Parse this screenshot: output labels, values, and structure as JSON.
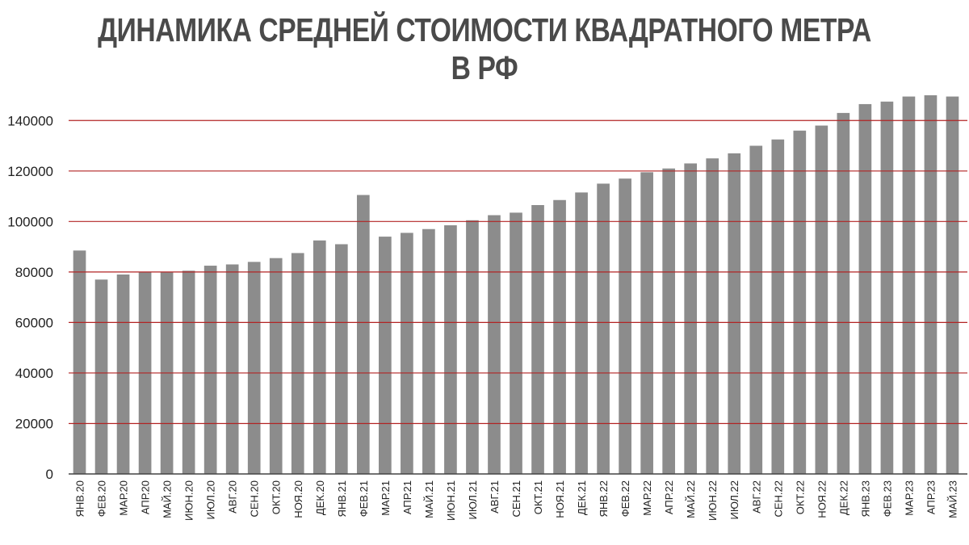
{
  "chart_data": {
    "type": "bar",
    "title": "ДИНАМИКА СРЕДНЕЙ СТОИМОСТИ КВАДРАТНОГО МЕТРА В РФ",
    "xlabel": "",
    "ylabel": "",
    "ylim": [
      0,
      150000
    ],
    "yticks": [
      0,
      20000,
      40000,
      60000,
      80000,
      100000,
      120000,
      140000
    ],
    "ytick_labels": [
      "0",
      "20000",
      "40000",
      "60000",
      "80000",
      "100000",
      "120000",
      "140000"
    ],
    "grid": true,
    "legend": "none",
    "categories": [
      "ЯНВ.20",
      "ФЕВ.20",
      "МАР.20",
      "АПР.20",
      "МАЙ.20",
      "ИЮН.20",
      "ИЮЛ.20",
      "АВГ.20",
      "СЕН.20",
      "ОКТ.20",
      "НОЯ.20",
      "ДЕК.20",
      "ЯНВ.21",
      "ФЕВ.21",
      "МАР.21",
      "АПР.21",
      "МАЙ.21",
      "ИЮН.21",
      "ИЮЛ.21",
      "АВГ.21",
      "СЕН.21",
      "ОКТ.21",
      "НОЯ.21",
      "ДЕК.21",
      "ЯНВ.22",
      "ФЕВ.22",
      "МАР.22",
      "АПР.22",
      "МАЙ.22",
      "ИЮН.22",
      "ИЮЛ.22",
      "АВГ.22",
      "СЕН.22",
      "ОКТ.22",
      "НОЯ.22",
      "ДЕК.22",
      "ЯНВ.23",
      "ФЕВ.23",
      "МАР.23",
      "АПР.23",
      "МАЙ.23"
    ],
    "values": [
      88500,
      77000,
      79000,
      80000,
      80000,
      80500,
      82500,
      83000,
      84000,
      85500,
      87500,
      92500,
      91000,
      110500,
      94000,
      95500,
      97000,
      98500,
      100500,
      102500,
      103500,
      106500,
      108500,
      111500,
      115000,
      117000,
      119500,
      121000,
      123000,
      125000,
      127000,
      130000,
      132500,
      136000,
      138000,
      143000,
      146500,
      147500,
      149500,
      150000,
      149500
    ],
    "colors": {
      "bar": "#8c8c8c",
      "grid": "#b22424",
      "axis": "#444444"
    }
  }
}
